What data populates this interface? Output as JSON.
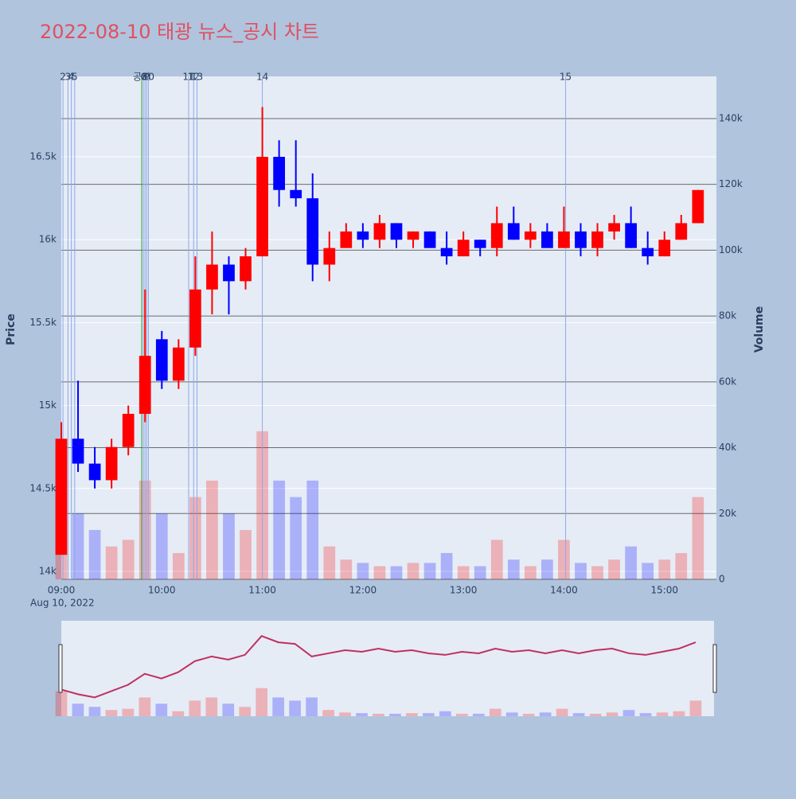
{
  "chart_data": {
    "type": "candlestick",
    "title": "2022-08-10 태광 뉴스_공시 차트",
    "date_label": "Aug 10, 2022",
    "y_label": "Price",
    "y2_label": "Volume",
    "up_color": "#ff0000",
    "down_color": "#0000ff",
    "x": [
      "09:00",
      "09:10",
      "09:20",
      "09:30",
      "09:40",
      "09:50",
      "10:00",
      "10:10",
      "10:20",
      "10:30",
      "10:40",
      "10:50",
      "11:00",
      "11:10",
      "11:20",
      "11:30",
      "11:40",
      "11:50",
      "12:00",
      "12:10",
      "12:20",
      "12:30",
      "12:40",
      "12:50",
      "13:00",
      "13:10",
      "13:20",
      "13:30",
      "13:40",
      "13:50",
      "14:00",
      "14:10",
      "14:20",
      "14:30",
      "14:40",
      "14:50",
      "15:00",
      "15:10",
      "15:20"
    ],
    "open": [
      14100,
      14800,
      14650,
      14550,
      14750,
      14950,
      15400,
      15150,
      15350,
      15700,
      15850,
      15750,
      15900,
      16500,
      16300,
      16250,
      15850,
      15950,
      16050,
      16000,
      16100,
      16000,
      16050,
      15950,
      15900,
      16000,
      15950,
      16100,
      16000,
      16050,
      15950,
      16050,
      15950,
      16050,
      16100,
      15950,
      15900,
      16000,
      16100
    ],
    "high": [
      14900,
      15150,
      14750,
      14800,
      15000,
      15700,
      15450,
      15400,
      15900,
      16050,
      15900,
      15950,
      16800,
      16600,
      16600,
      16400,
      16050,
      16100,
      16100,
      16150,
      16100,
      16050,
      16050,
      16050,
      16050,
      16000,
      16200,
      16200,
      16100,
      16100,
      16200,
      16100,
      16100,
      16150,
      16200,
      16050,
      16050,
      16150,
      16300
    ],
    "low": [
      14100,
      14600,
      14500,
      14500,
      14700,
      14900,
      15100,
      15100,
      15300,
      15550,
      15550,
      15700,
      15900,
      16200,
      16200,
      15750,
      15750,
      15950,
      15950,
      15950,
      15950,
      15950,
      15950,
      15850,
      15900,
      15900,
      15900,
      16000,
      15950,
      15950,
      15950,
      15900,
      15900,
      16000,
      15950,
      15850,
      15900,
      16000,
      16100
    ],
    "close": [
      14800,
      14650,
      14550,
      14750,
      14950,
      15300,
      15150,
      15350,
      15700,
      15850,
      15750,
      15900,
      16500,
      16300,
      16250,
      15850,
      15950,
      16050,
      16000,
      16100,
      16000,
      16050,
      15950,
      15900,
      16000,
      15950,
      16100,
      16000,
      16050,
      15950,
      16050,
      15950,
      16050,
      16100,
      15950,
      15900,
      16000,
      16100,
      16300
    ],
    "volume": [
      40000,
      20000,
      15000,
      10000,
      12000,
      30000,
      20000,
      8000,
      25000,
      30000,
      20000,
      15000,
      45000,
      30000,
      25000,
      30000,
      10000,
      6000,
      5000,
      4000,
      4000,
      5000,
      5000,
      8000,
      4000,
      4000,
      12000,
      6000,
      4000,
      6000,
      12000,
      5000,
      4000,
      6000,
      10000,
      5000,
      6000,
      8000,
      25000
    ],
    "xlim": [
      "09:00",
      "15:31"
    ],
    "xticks": [
      "09:00",
      "10:00",
      "11:00",
      "12:00",
      "13:00",
      "14:00",
      "15:00"
    ],
    "ylim": [
      13952,
      16985
    ],
    "yticks": [
      {
        "value": 14000,
        "label": "14k"
      },
      {
        "value": 14500,
        "label": "14.5k"
      },
      {
        "value": 15000,
        "label": "15k"
      },
      {
        "value": 15500,
        "label": "15.5k"
      },
      {
        "value": 16000,
        "label": "16k"
      },
      {
        "value": 16500,
        "label": "16.5k"
      }
    ],
    "y2lim": [
      0,
      152800
    ],
    "y2ticks": [
      0,
      {
        "value": 20000,
        "label": "20k"
      },
      {
        "value": 40000,
        "label": "40k"
      },
      {
        "value": 60000,
        "label": "60k"
      },
      {
        "value": 80000,
        "label": "80k"
      },
      {
        "value": 100000,
        "label": "100k"
      },
      {
        "value": 120000,
        "label": "120k"
      },
      {
        "value": 140000,
        "label": "140k"
      }
    ],
    "annotations": [
      {
        "time": "09:01",
        "label": "2",
        "color": "#8fa8e8"
      },
      {
        "time": "09:04",
        "label": "3",
        "color": "#8fa8e8"
      },
      {
        "time": "09:06",
        "label": "4",
        "color": "#8fa8e8"
      },
      {
        "time": "09:08",
        "label": "5",
        "color": "#8fa8e8"
      },
      {
        "time": "09:48",
        "label": "공시",
        "color": "#2ca02c"
      },
      {
        "time": "09:49",
        "label": "6",
        "color": "#8fa8e8"
      },
      {
        "time": "09:50",
        "label": "8",
        "color": "#8fa8e8"
      },
      {
        "time": "09:51",
        "label": "9",
        "color": "#8fa8e8"
      },
      {
        "time": "09:52",
        "label": "10",
        "color": "#8fa8e8"
      },
      {
        "time": "10:16",
        "label": "11",
        "color": "#8fa8e8"
      },
      {
        "time": "10:19",
        "label": "12",
        "color": "#8fa8e8"
      },
      {
        "time": "10:21",
        "label": "13",
        "color": "#8fa8e8"
      },
      {
        "time": "11:00",
        "label": "14",
        "color": "#8fa8e8"
      },
      {
        "time": "14:01",
        "label": "15",
        "color": "#8fa8e8"
      }
    ]
  }
}
